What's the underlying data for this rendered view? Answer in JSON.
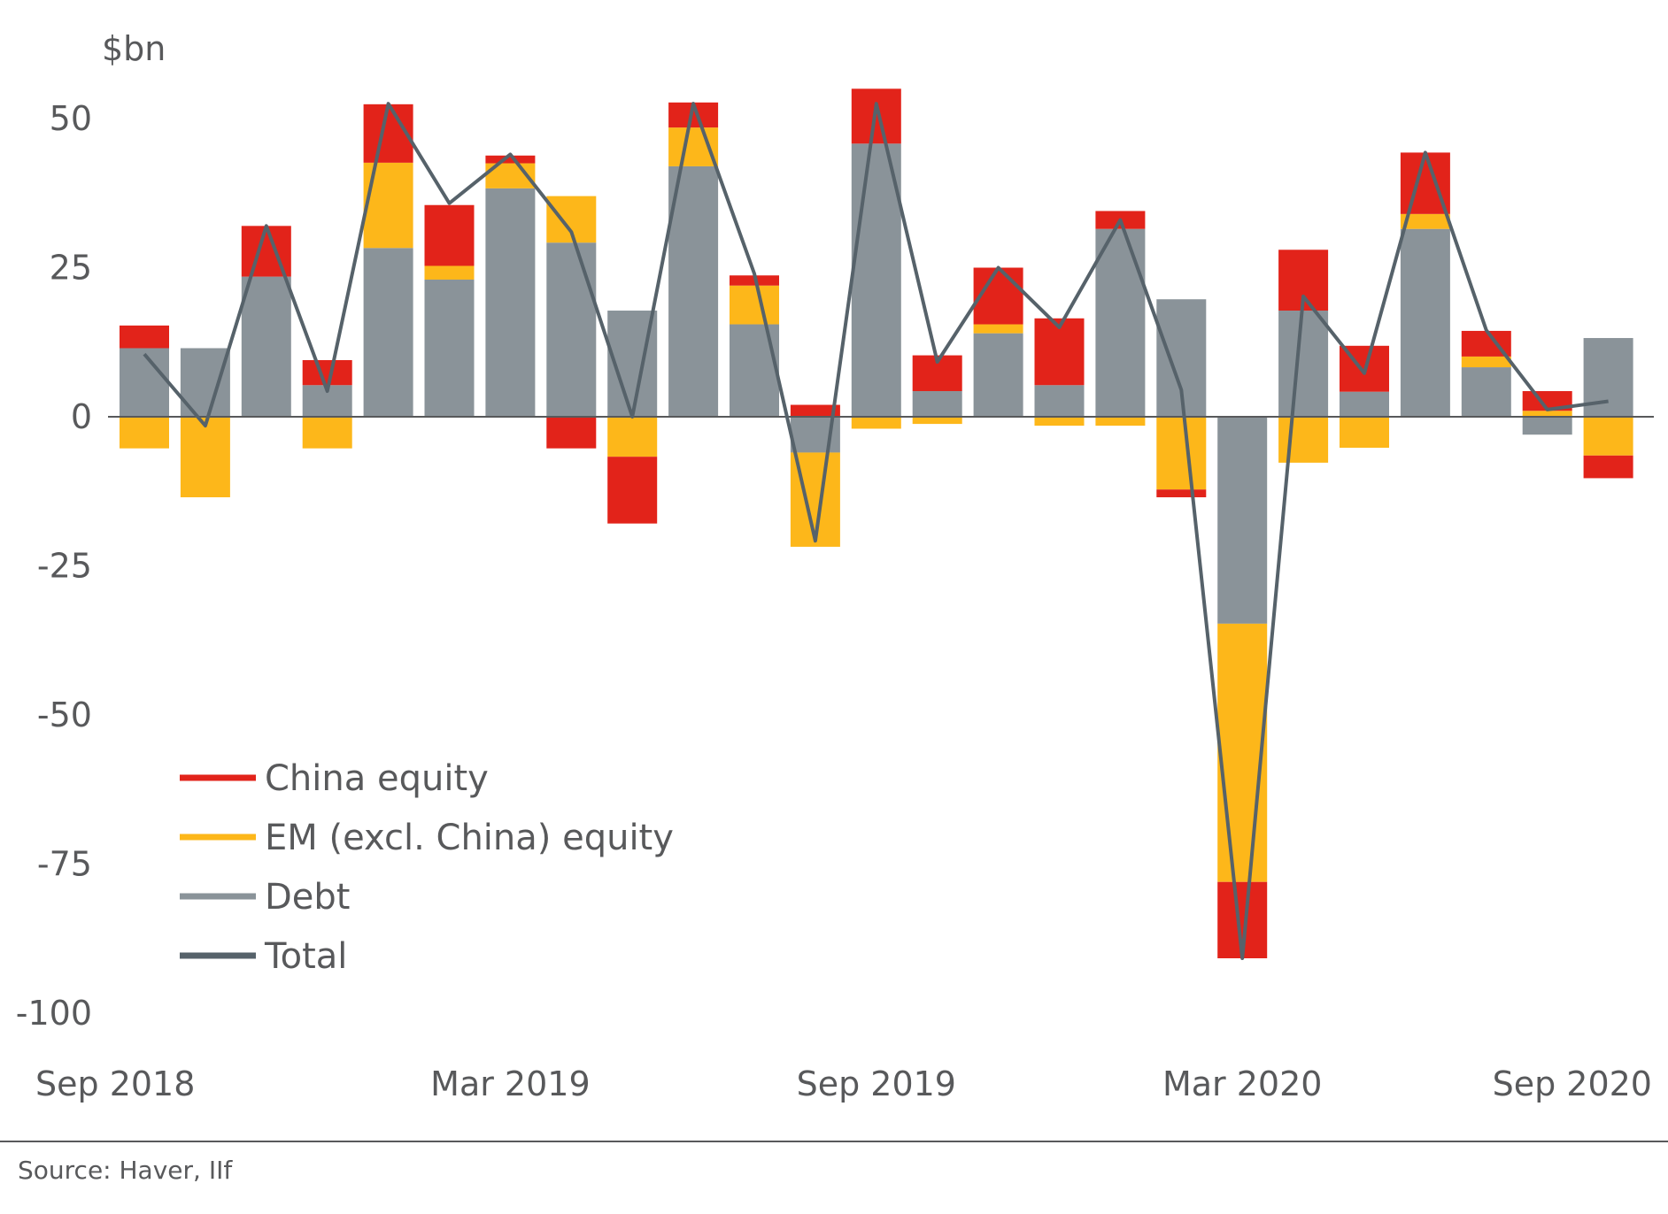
{
  "chart_data": {
    "type": "bar",
    "stacked": true,
    "unit_label": "$bn",
    "source": "Source: Haver, IIf",
    "ylim": [
      -100,
      55
    ],
    "yticks": [
      50,
      25,
      0,
      -25,
      -50,
      -75,
      -100
    ],
    "ytick_labels": [
      "50",
      "25",
      "0",
      "-25",
      "-50",
      "-75",
      "-100"
    ],
    "xtick_labels": [
      "Sep 2018",
      "Mar 2019",
      "Sep 2019",
      "Mar 2020",
      "Sep 2020"
    ],
    "xtick_indices": [
      0,
      6,
      12,
      18,
      24
    ],
    "categories": [
      "Sep 2018",
      "Oct 2018",
      "Nov 2018",
      "Dec 2018",
      "Jan 2019",
      "Feb 2019",
      "Mar 2019",
      "Apr 2019",
      "May 2019",
      "Jun 2019",
      "Jul 2019",
      "Aug 2019",
      "Sep 2019",
      "Oct 2019",
      "Nov 2019",
      "Dec 2019",
      "Jan 2020",
      "Feb 2020",
      "Mar 2020",
      "Apr 2020",
      "May 2020",
      "Jun 2020",
      "Jul 2020",
      "Aug 2020",
      "Sep 2020"
    ],
    "series": [
      {
        "name": "Debt",
        "color": "#8a9399",
        "values": [
          11.5,
          11.5,
          23.5,
          5.3,
          28.3,
          23,
          38.3,
          29.2,
          17.8,
          42,
          15.5,
          -6,
          45.8,
          4.3,
          14,
          5.3,
          31.5,
          19.7,
          -34.7,
          17.8,
          4.2,
          31.5,
          8.3,
          -3,
          13.2
        ]
      },
      {
        "name": "EM (excl. China) equity",
        "color": "#fdb71a",
        "values": [
          -5.3,
          -13.5,
          0,
          -5.3,
          14.3,
          2.3,
          4.2,
          7.8,
          -6.7,
          6.5,
          6.5,
          -15.8,
          -2,
          -1.2,
          1.5,
          -1.5,
          -1.5,
          -12.2,
          -43.3,
          -7.7,
          -5.2,
          2.5,
          1.8,
          1,
          -6.5
        ]
      },
      {
        "name": "China equity",
        "color": "#e2231a",
        "values": [
          3.8,
          0,
          8.5,
          4.2,
          9.8,
          10.2,
          1.3,
          -5.3,
          -11.2,
          4.2,
          1.7,
          2,
          9.2,
          6,
          9.5,
          11.2,
          3,
          -1.3,
          -12.8,
          10.2,
          7.7,
          10.3,
          4.3,
          3.3,
          -3.8
        ]
      }
    ],
    "total": {
      "name": "Total",
      "color": "#56626a",
      "values": [
        10.5,
        -1.5,
        32,
        4.3,
        52.5,
        35.8,
        44,
        31,
        0,
        52.5,
        24,
        -20.8,
        52.5,
        9.2,
        25,
        15,
        33,
        4.5,
        -90.8,
        20.2,
        7.3,
        44.3,
        14.5,
        1.2,
        2.6
      ]
    },
    "legend": {
      "position": "bottom-left",
      "items": [
        {
          "label": "China equity",
          "color": "#e2231a"
        },
        {
          "label": "EM (excl. China) equity",
          "color": "#fdb71a"
        },
        {
          "label": "Debt",
          "color": "#8a9399"
        },
        {
          "label": "Total",
          "color": "#56626a"
        }
      ]
    }
  }
}
